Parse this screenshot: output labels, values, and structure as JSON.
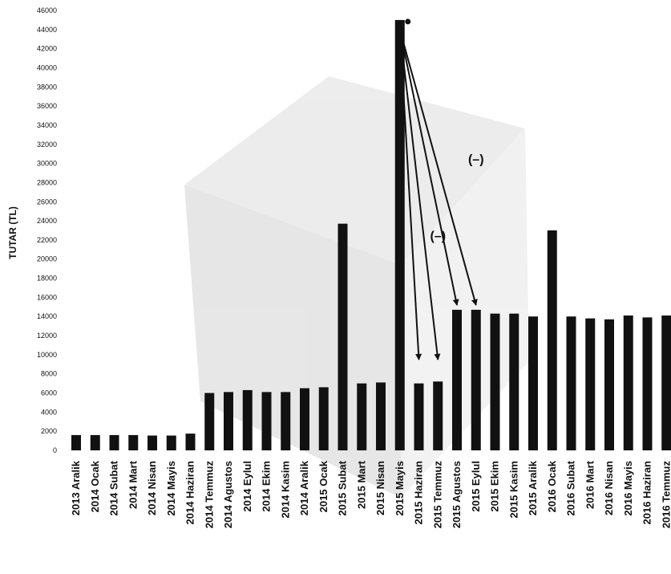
{
  "chart_data": {
    "type": "bar",
    "ylabel": "TUTAR (TL)",
    "xlabel": "",
    "title": "",
    "ylim": [
      0,
      46000
    ],
    "y_ticks": [
      0,
      2000,
      4000,
      6000,
      8000,
      10000,
      12000,
      14000,
      16000,
      18000,
      20000,
      22000,
      24000,
      26000,
      28000,
      30000,
      32000,
      34000,
      36000,
      38000,
      40000,
      42000,
      44000,
      46000
    ],
    "grid": false,
    "bar_color": "#111111",
    "categories": [
      "2013 Aralik",
      "2014 Ocak",
      "2014 Subat",
      "2014 Mart",
      "2014 Nisan",
      "2014 Mayis",
      "2014 Haziran",
      "2014 Temmuz",
      "2014 Agustos",
      "2014 Eylul",
      "2014 Ekim",
      "2014 Kasim",
      "2014 Aralik",
      "2015 Ocak",
      "2015 Subat",
      "2015 Mart",
      "2015 Nisan",
      "2015 Mayis",
      "2015 Haziran",
      "2015 Temmuz",
      "2015 Agustos",
      "2015 Eylul",
      "2015 Ekim",
      "2015 Kasim",
      "2015 Aralik",
      "2016 Ocak",
      "2016 Subat",
      "2016 Mart",
      "2016 Nisan",
      "2016 Mayis",
      "2016 Haziran",
      "2016 Temmuz"
    ],
    "values": [
      1600,
      1600,
      1600,
      1600,
      1550,
      1550,
      1750,
      6000,
      6100,
      6300,
      6100,
      6100,
      6500,
      6600,
      23700,
      7000,
      7100,
      45000,
      7000,
      7200,
      14700,
      14700,
      14300,
      14300,
      14000,
      23000,
      14000,
      13800,
      13700,
      14100,
      13900,
      14100
    ],
    "annotations": [
      {
        "text": "(–)",
        "value_x": "2015 Eylul",
        "value_y": 30000
      },
      {
        "text": "(–)",
        "value_x": "2015 Temmuz",
        "value_y": 22000
      }
    ],
    "arrows": [
      {
        "from": "2015 Mayis",
        "from_y": 44000,
        "to": "2015 Haziran",
        "to_y": 9500
      },
      {
        "from": "2015 Mayis",
        "from_y": 44000,
        "to": "2015 Temmuz",
        "to_y": 9500
      },
      {
        "from": "2015 Mayis",
        "from_y": 44000,
        "to": "2015 Agustos",
        "to_y": 15200
      },
      {
        "from": "2015 Mayis",
        "from_y": 44000,
        "to": "2015 Eylul",
        "to_y": 15200
      }
    ]
  }
}
